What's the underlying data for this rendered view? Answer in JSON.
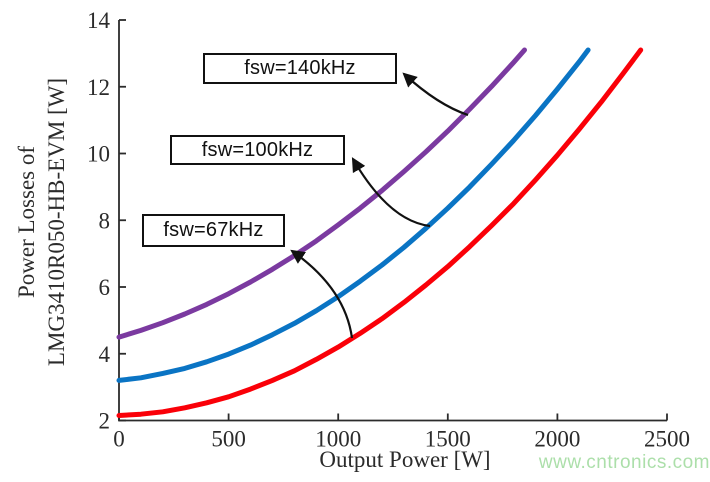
{
  "watermark": {
    "text": "www.cntronics.com",
    "color": "#ACDFAA"
  },
  "chart_data": {
    "type": "line",
    "title": "",
    "xlabel": "Output Power [W]",
    "ylabel_lines": [
      "Power Losses of",
      "LMG3410R050-HB-EVM [W]"
    ],
    "xlim": [
      0,
      2500
    ],
    "ylim": [
      2,
      14
    ],
    "x_ticks": [
      0,
      500,
      1000,
      1500,
      2000,
      2500
    ],
    "y_ticks": [
      2,
      4,
      6,
      8,
      10,
      12,
      14
    ],
    "grid": "off",
    "legend_position": "none (labeled annotation boxes with arrows)",
    "axis_color": "#2b2b2b",
    "series": [
      {
        "name": "fsw=67kHz",
        "color": "#FA0008",
        "points": [
          [
            0,
            2.15
          ],
          [
            100,
            2.19
          ],
          [
            200,
            2.26
          ],
          [
            300,
            2.38
          ],
          [
            400,
            2.53
          ],
          [
            500,
            2.71
          ],
          [
            600,
            2.94
          ],
          [
            700,
            3.2
          ],
          [
            800,
            3.49
          ],
          [
            900,
            3.83
          ],
          [
            1000,
            4.2
          ],
          [
            1100,
            4.61
          ],
          [
            1200,
            5.05
          ],
          [
            1300,
            5.54
          ],
          [
            1400,
            6.06
          ],
          [
            1500,
            6.61
          ],
          [
            1600,
            7.21
          ],
          [
            1700,
            7.84
          ],
          [
            1800,
            8.5
          ],
          [
            1900,
            9.21
          ],
          [
            2000,
            9.95
          ],
          [
            2100,
            10.73
          ],
          [
            2200,
            11.54
          ],
          [
            2300,
            12.4
          ],
          [
            2380,
            13.1
          ]
        ]
      },
      {
        "name": "fsw=100kHz",
        "color": "#0A74C4",
        "points": [
          [
            0,
            3.2
          ],
          [
            100,
            3.28
          ],
          [
            200,
            3.41
          ],
          [
            300,
            3.56
          ],
          [
            400,
            3.76
          ],
          [
            500,
            3.99
          ],
          [
            600,
            4.26
          ],
          [
            700,
            4.57
          ],
          [
            800,
            4.91
          ],
          [
            900,
            5.29
          ],
          [
            1000,
            5.71
          ],
          [
            1100,
            6.17
          ],
          [
            1200,
            6.66
          ],
          [
            1300,
            7.19
          ],
          [
            1400,
            7.76
          ],
          [
            1500,
            8.36
          ],
          [
            1600,
            9.0
          ],
          [
            1700,
            9.68
          ],
          [
            1800,
            10.39
          ],
          [
            1900,
            11.14
          ],
          [
            2000,
            11.93
          ],
          [
            2100,
            12.75
          ],
          [
            2140,
            13.1
          ]
        ]
      },
      {
        "name": "fsw=140kHz",
        "color": "#7B3AA0",
        "points": [
          [
            0,
            4.5
          ],
          [
            100,
            4.7
          ],
          [
            200,
            4.93
          ],
          [
            300,
            5.19
          ],
          [
            400,
            5.48
          ],
          [
            500,
            5.8
          ],
          [
            600,
            6.15
          ],
          [
            700,
            6.53
          ],
          [
            800,
            6.94
          ],
          [
            900,
            7.38
          ],
          [
            1000,
            7.86
          ],
          [
            1100,
            8.36
          ],
          [
            1200,
            8.89
          ],
          [
            1300,
            9.46
          ],
          [
            1400,
            10.05
          ],
          [
            1500,
            10.67
          ],
          [
            1600,
            11.33
          ],
          [
            1700,
            12.01
          ],
          [
            1800,
            12.73
          ],
          [
            1850,
            13.1
          ]
        ]
      }
    ],
    "annotations": [
      {
        "label": "fsw=140kHz",
        "target_series": "fsw=140kHz"
      },
      {
        "label": "fsw=100kHz",
        "target_series": "fsw=100kHz"
      },
      {
        "label": "fsw=67kHz",
        "target_series": "fsw=67kHz"
      }
    ]
  }
}
